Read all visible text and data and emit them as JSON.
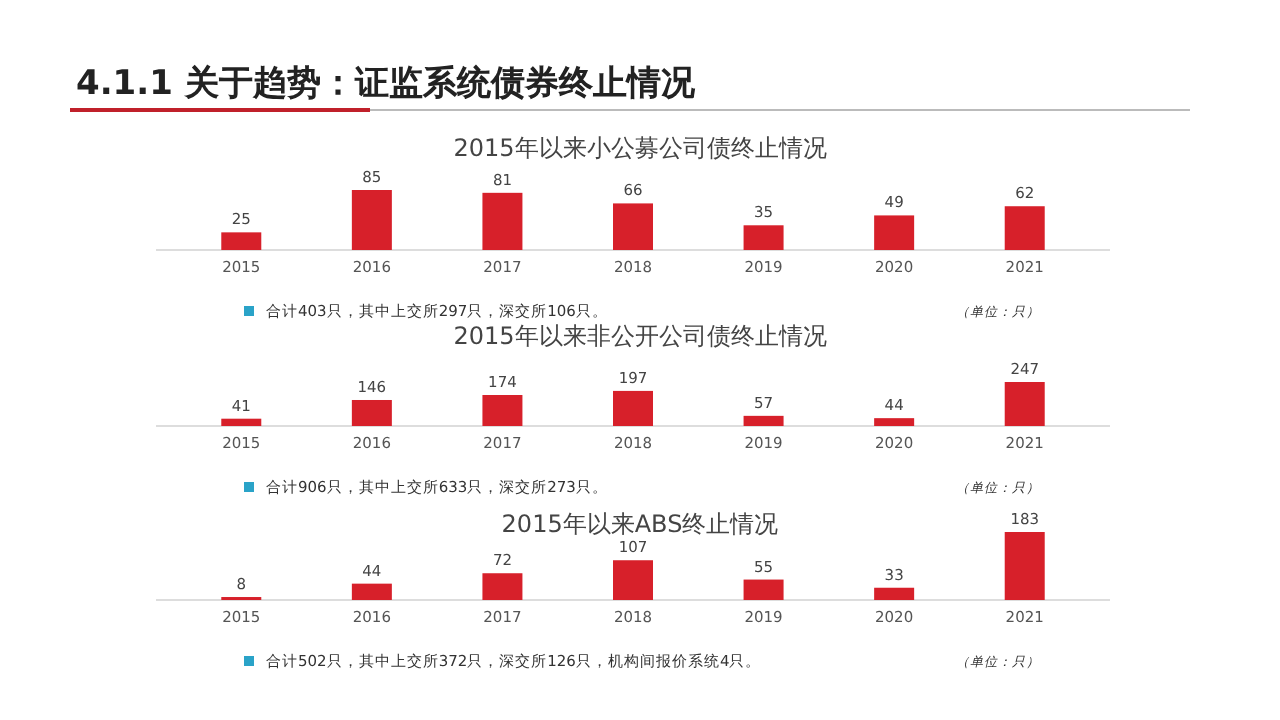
{
  "chart_data": [
    {
      "type": "bar",
      "title": "2015年以来小公募公司债终止情况",
      "categories": [
        "2015",
        "2016",
        "2017",
        "2018",
        "2019",
        "2020",
        "2021"
      ],
      "values": [
        25,
        85,
        81,
        66,
        35,
        49,
        62
      ],
      "color": "#d7202a",
      "data_labels": true,
      "annotations": [
        "4.1.1 关于趋势：证监系统债券终止情况",
        "合计403只，其中上交所297只，深交所106只。",
        "（单位：只）"
      ]
    },
    {
      "type": "bar",
      "title": "2015年以来非公开公司债终止情况",
      "categories": [
        "2015",
        "2016",
        "2017",
        "2018",
        "2019",
        "2020",
        "2021"
      ],
      "values": [
        41,
        146,
        174,
        197,
        57,
        44,
        247
      ],
      "color": "#d7202a",
      "data_labels": true,
      "annotations": [
        "合计906只，其中上交所633只，深交所273只。",
        "（单位：只）"
      ]
    },
    {
      "type": "bar",
      "title": "2015年以来ABS终止情况",
      "categories": [
        "2015",
        "2016",
        "2017",
        "2018",
        "2019",
        "2020",
        "2021"
      ],
      "values": [
        8,
        44,
        72,
        107,
        55,
        33,
        183
      ],
      "color": "#d7202a",
      "data_labels": true,
      "annotations": [
        "合计502只，其中上交所372只，深交所126只，机构间报价系统4只。",
        "（单位：只）"
      ]
    }
  ]
}
